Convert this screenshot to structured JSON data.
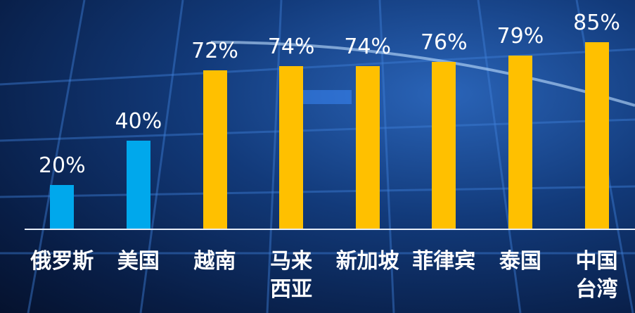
{
  "chart_data": {
    "type": "bar",
    "categories": [
      "俄罗斯",
      "美国",
      "越南",
      "马来西亚",
      "新加坡",
      "菲律宾",
      "泰国",
      "中国台湾"
    ],
    "values": [
      20,
      40,
      72,
      74,
      74,
      76,
      79,
      85
    ],
    "value_labels": [
      "20%",
      "40%",
      "72%",
      "74%",
      "74%",
      "76%",
      "79%",
      "85%"
    ],
    "colors": [
      "#00a8ec",
      "#00a8ec",
      "#ffc000",
      "#ffc000",
      "#ffc000",
      "#ffc000",
      "#ffc000",
      "#ffc000"
    ]
  }
}
